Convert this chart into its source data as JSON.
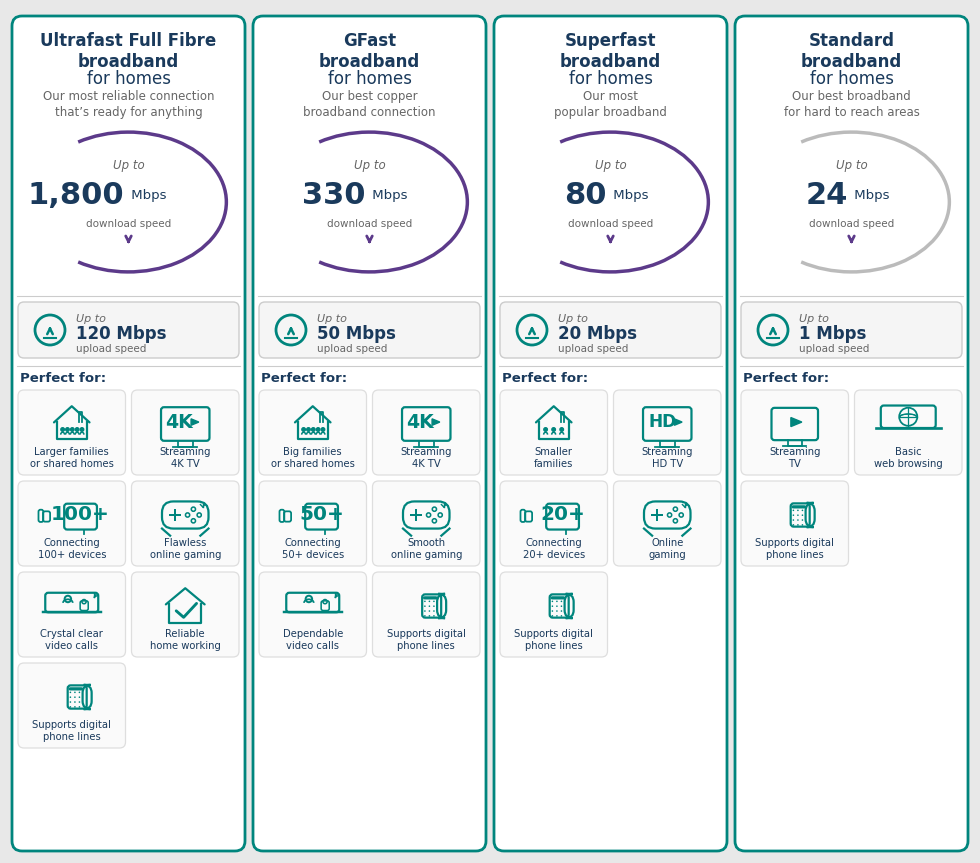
{
  "bg_color": "#e8e8e8",
  "card_bg": "#ffffff",
  "card_border": "#00857d",
  "title_color": "#1a3a5c",
  "subtitle_color": "#666666",
  "teal_color": "#00857d",
  "purple_color": "#5c3a8a",
  "dark_navy": "#1a3a5c",
  "fig_w": 9.8,
  "fig_h": 8.63,
  "columns": [
    {
      "title_bold": "Ultrafast Full Fibre\nbroadband",
      "title_light": "for homes",
      "subtitle": "Our most reliable connection\nthat’s ready for anything",
      "download_speed": "1,800",
      "upload_speed": "120",
      "arc_color": "#5c3a8a",
      "features": [
        [
          "Larger families\nor shared homes",
          "Streaming\n4K TV"
        ],
        [
          "Connecting\n100+ devices",
          "Flawless\nonline gaming"
        ],
        [
          "Crystal clear\nvideo calls",
          "Reliable\nhome working"
        ],
        [
          "Supports digital\nphone lines",
          null
        ]
      ],
      "feature_icons": [
        [
          "house_large",
          "tv_4k"
        ],
        [
          "devices_100",
          "gaming"
        ],
        [
          "video_call",
          "home_working"
        ],
        [
          "phone_lines",
          null
        ]
      ]
    },
    {
      "title_bold": "GFast\nbroadband",
      "title_light": "for homes",
      "subtitle": "Our best copper\nbroadband connection",
      "download_speed": "330",
      "upload_speed": "50",
      "arc_color": "#5c3a8a",
      "features": [
        [
          "Big families\nor shared homes",
          "Streaming\n4K TV"
        ],
        [
          "Connecting\n50+ devices",
          "Smooth\nonline gaming"
        ],
        [
          "Dependable\nvideo calls",
          "Supports digital\nphone lines"
        ]
      ],
      "feature_icons": [
        [
          "house_large",
          "tv_4k"
        ],
        [
          "devices_50",
          "gaming"
        ],
        [
          "video_call",
          "phone_lines"
        ]
      ]
    },
    {
      "title_bold": "Superfast\nbroadband",
      "title_light": "for homes",
      "subtitle": "Our most\npopular broadband",
      "download_speed": "80",
      "upload_speed": "20",
      "arc_color": "#5c3a8a",
      "features": [
        [
          "Smaller\nfamilies",
          "Streaming\nHD TV"
        ],
        [
          "Connecting\n20+ devices",
          "Online\ngaming"
        ],
        [
          "Supports digital\nphone lines",
          null
        ]
      ],
      "feature_icons": [
        [
          "house_small",
          "tv_hd"
        ],
        [
          "devices_20",
          "gaming"
        ],
        [
          "phone_lines",
          null
        ]
      ]
    },
    {
      "title_bold": "Standard\nbroadband",
      "title_light": "for homes",
      "subtitle": "Our best broadband\nfor hard to reach areas",
      "download_speed": "24",
      "upload_speed": "1",
      "arc_color": "#bbbbbb",
      "features": [
        [
          "Streaming\nTV",
          "Basic\nweb browsing"
        ],
        [
          "Supports digital\nphone lines",
          null
        ]
      ],
      "feature_icons": [
        [
          "tv_basic",
          "web_browsing"
        ],
        [
          "phone_lines",
          null
        ]
      ]
    }
  ]
}
